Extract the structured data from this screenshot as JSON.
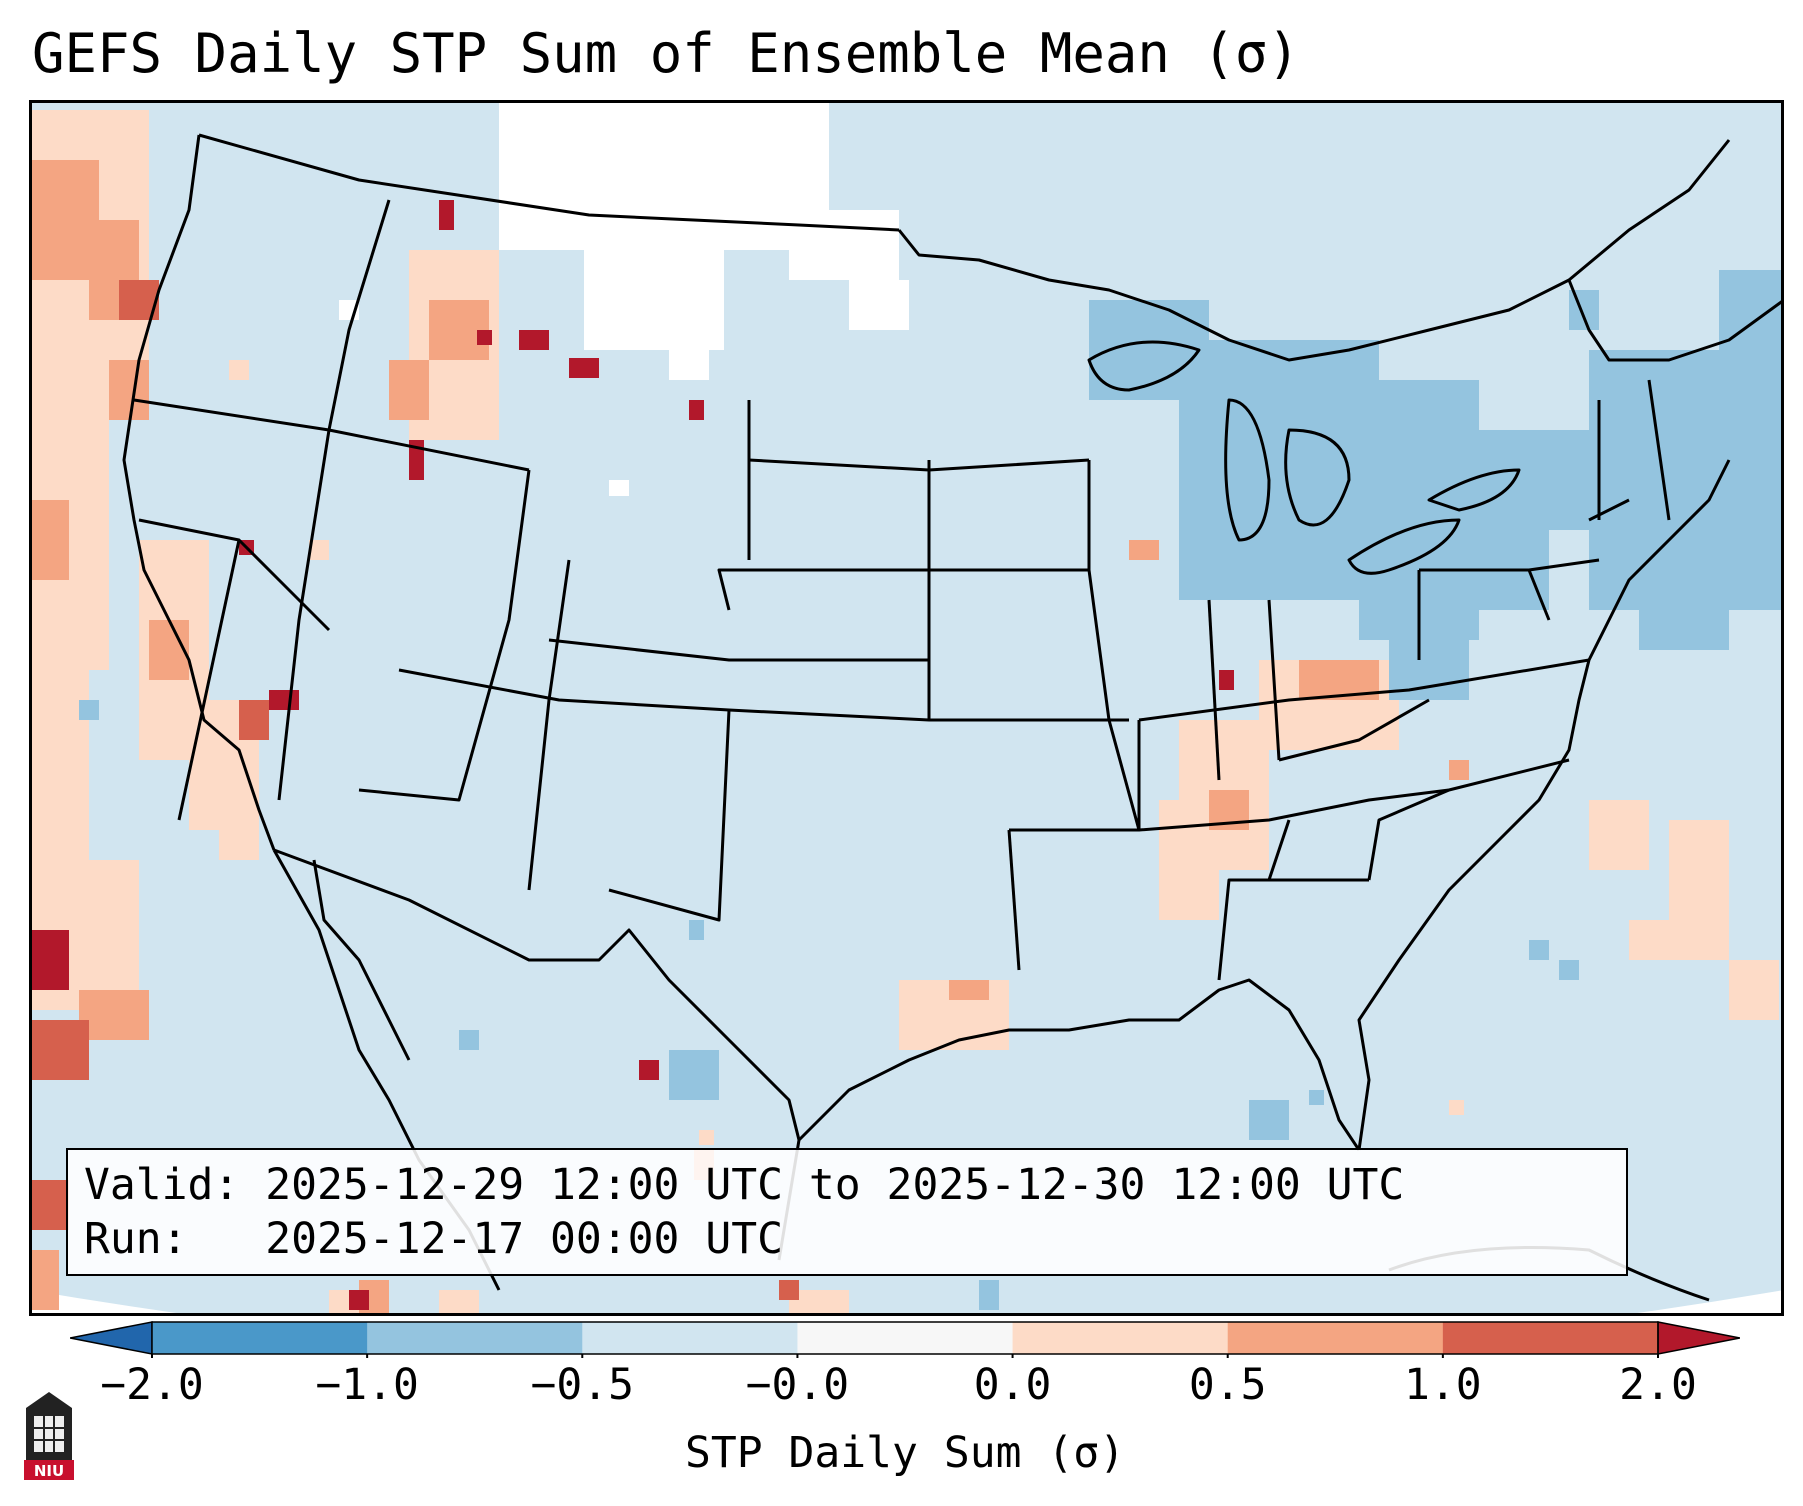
{
  "title": "GEFS Daily STP Sum of Ensemble Mean (σ)",
  "info": {
    "valid_label": "Valid:",
    "valid_value": "2025-12-29 12:00 UTC to 2025-12-30 12:00 UTC",
    "run_label": "Run:",
    "run_value": "2025-12-17 00:00 UTC"
  },
  "colorbar": {
    "label": "STP Daily Sum (σ)",
    "ticks": [
      "−2.0",
      "−1.0",
      "−0.5",
      "−0.0",
      "0.0",
      "0.5",
      "1.0",
      "2.0"
    ],
    "bins": [
      {
        "range": "-2.0 to -1.0",
        "color": "#4a98c9"
      },
      {
        "range": "-1.0 to -0.5",
        "color": "#94c4df"
      },
      {
        "range": "-0.5 to -0.0",
        "color": "#d1e5f0"
      },
      {
        "range": "-0.0 to 0.0",
        "color": "#f7f7f7"
      },
      {
        "range": "0.0 to 0.5",
        "color": "#fddbc7"
      },
      {
        "range": "0.5 to 1.0",
        "color": "#f4a582"
      },
      {
        "range": "1.0 to 2.0",
        "color": "#d6604d"
      }
    ],
    "extend_low_color": "#2166ac",
    "extend_high_color": "#b2182b"
  },
  "map": {
    "projection": "Lambert Conformal (CONUS)",
    "background_color": "#d1e5f0",
    "border_color": "#000000"
  },
  "logo": {
    "text": "NIU",
    "color": "#c8102e"
  }
}
